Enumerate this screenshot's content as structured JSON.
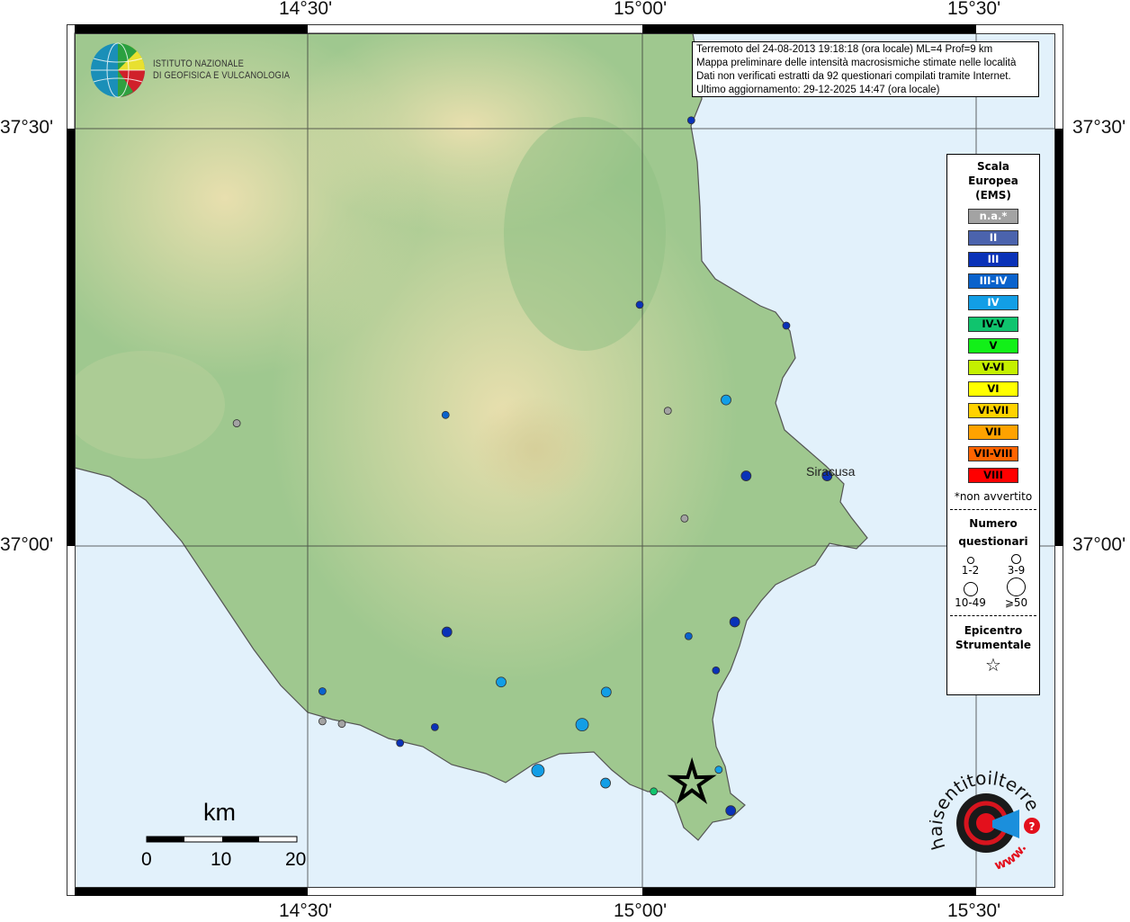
{
  "map": {
    "graticule": {
      "lon_labels": [
        "14°30'",
        "15°00'",
        "15°30'"
      ],
      "lat_labels": [
        "37°30'",
        "37°00'"
      ]
    },
    "colors": {
      "sea": "#e2f1fb",
      "land": "#9fc88f",
      "highland": "#e6e1b0"
    },
    "place_labels": {
      "siracusa": "Siracusa"
    },
    "epicenter": {
      "lon": 15.074,
      "lat": 36.716,
      "icon": "star-icon"
    },
    "observations": [
      {
        "lon": 15.073,
        "lat": 37.51,
        "intensity": "III",
        "questionnaires": "1-2"
      },
      {
        "lon": 14.996,
        "lat": 37.289,
        "intensity": "III",
        "questionnaires": "1-2"
      },
      {
        "lon": 15.215,
        "lat": 37.264,
        "intensity": "III",
        "questionnaires": "1-2"
      },
      {
        "lon": 15.125,
        "lat": 37.175,
        "intensity": "IV",
        "questionnaires": "3-9"
      },
      {
        "lon": 15.038,
        "lat": 37.162,
        "intensity": "n.a.*",
        "questionnaires": "1-2"
      },
      {
        "lon": 14.706,
        "lat": 37.157,
        "intensity": "III-IV",
        "questionnaires": "1-2"
      },
      {
        "lon": 14.394,
        "lat": 37.147,
        "intensity": "n.a.*",
        "questionnaires": "1-2"
      },
      {
        "lon": 15.155,
        "lat": 37.084,
        "intensity": "III",
        "questionnaires": "3-9"
      },
      {
        "lon": 15.276,
        "lat": 37.084,
        "intensity": "III",
        "questionnaires": "3-9"
      },
      {
        "lon": 15.063,
        "lat": 37.033,
        "intensity": "n.a.*",
        "questionnaires": "1-2"
      },
      {
        "lon": 15.138,
        "lat": 36.909,
        "intensity": "III",
        "questionnaires": "3-9"
      },
      {
        "lon": 14.708,
        "lat": 36.897,
        "intensity": "III",
        "questionnaires": "3-9"
      },
      {
        "lon": 15.069,
        "lat": 36.892,
        "intensity": "III-IV",
        "questionnaires": "1-2"
      },
      {
        "lon": 15.11,
        "lat": 36.851,
        "intensity": "III",
        "questionnaires": "1-2"
      },
      {
        "lon": 14.789,
        "lat": 36.837,
        "intensity": "IV",
        "questionnaires": "3-9"
      },
      {
        "lon": 14.522,
        "lat": 36.826,
        "intensity": "III-IV",
        "questionnaires": "1-2"
      },
      {
        "lon": 14.946,
        "lat": 36.825,
        "intensity": "IV",
        "questionnaires": "3-9"
      },
      {
        "lon": 14.522,
        "lat": 36.79,
        "intensity": "n.a.*",
        "questionnaires": "1-2"
      },
      {
        "lon": 14.551,
        "lat": 36.787,
        "intensity": "n.a.*",
        "questionnaires": "1-2"
      },
      {
        "lon": 14.69,
        "lat": 36.783,
        "intensity": "III",
        "questionnaires": "1-2"
      },
      {
        "lon": 14.91,
        "lat": 36.786,
        "intensity": "IV",
        "questionnaires": "10-49"
      },
      {
        "lon": 14.638,
        "lat": 36.764,
        "intensity": "III",
        "questionnaires": "1-2"
      },
      {
        "lon": 14.844,
        "lat": 36.731,
        "intensity": "IV",
        "questionnaires": "10-49"
      },
      {
        "lon": 15.114,
        "lat": 36.732,
        "intensity": "IV",
        "questionnaires": "1-2"
      },
      {
        "lon": 14.945,
        "lat": 36.716,
        "intensity": "IV",
        "questionnaires": "3-9"
      },
      {
        "lon": 15.017,
        "lat": 36.706,
        "intensity": "IV-V",
        "questionnaires": "1-2"
      },
      {
        "lon": 15.132,
        "lat": 36.683,
        "intensity": "III",
        "questionnaires": "3-9"
      }
    ]
  },
  "info": {
    "line1": "Terremoto del 24-08-2013 19:18:18 (ora locale) ML=4 Prof=9 km",
    "line2": "Mappa preliminare delle intensità macrosismiche stimate nelle località",
    "line3": "Dati non verificati estratti da 92 questionari compilati tramite Internet.",
    "line4": "Ultimo aggiornamento: 29-12-2025 14:47 (ora locale)"
  },
  "legend": {
    "title": [
      "Scala",
      "Europea",
      "(EMS)"
    ],
    "classes": [
      {
        "label": "n.a.*",
        "color": "#a3a3a3",
        "text": "#ffffff"
      },
      {
        "label": "II",
        "color": "#4b63ad",
        "text": "#ffffff"
      },
      {
        "label": "III",
        "color": "#0a32b8",
        "text": "#ffffff"
      },
      {
        "label": "III-IV",
        "color": "#0a62cc",
        "text": "#ffffff"
      },
      {
        "label": "IV",
        "color": "#129ee6",
        "text": "#ffffff"
      },
      {
        "label": "IV-V",
        "color": "#10c46e",
        "text": "#000000"
      },
      {
        "label": "V",
        "color": "#12f018",
        "text": "#000000"
      },
      {
        "label": "V-VI",
        "color": "#c4f000",
        "text": "#000000"
      },
      {
        "label": "VI",
        "color": "#ffff00",
        "text": "#000000"
      },
      {
        "label": "VI-VII",
        "color": "#ffd200",
        "text": "#000000"
      },
      {
        "label": "VII",
        "color": "#ffa200",
        "text": "#000000"
      },
      {
        "label": "VII-VIII",
        "color": "#ff6400",
        "text": "#000000"
      },
      {
        "label": "VIII",
        "color": "#ff0000",
        "text": "#000000"
      }
    ],
    "note": "*non avvertito",
    "count_title": [
      "Numero",
      "questionari"
    ],
    "counts": [
      "1-2",
      "3-9",
      "10-49",
      "⩾50"
    ],
    "epicenter_title": [
      "Epicentro",
      "Strumentale"
    ]
  },
  "scale_bar": {
    "unit": "km",
    "ticks": [
      "0",
      "10",
      "20"
    ]
  },
  "logos": {
    "ingv": "ISTITUTO NAZIONALE DI GEOFISICA E VULCANOLOGIA",
    "ingv_line1": "ISTITUTO NAZIONALE",
    "ingv_line2": "DI GEOFISICA E VULCANOLOGIA",
    "hsit": "www.haisentitoilterremoto.it"
  }
}
